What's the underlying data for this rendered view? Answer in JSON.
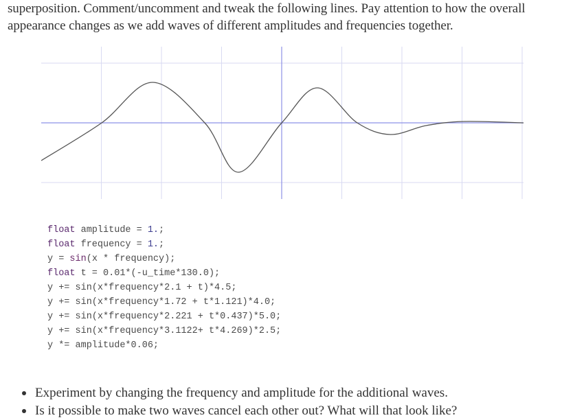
{
  "intro": {
    "text": "superposition. Comment/uncomment and tweak the following lines. Pay attention to how the overall appearance changes as we add waves of different amplitudes and frequencies together."
  },
  "colors": {
    "grid": "#d8daf2",
    "axis": "#8c90e6",
    "curve": "#555555",
    "keyword": "#5b2a6e",
    "number": "#3d3d8f"
  },
  "plot": {
    "grid": true,
    "axis_color": "#8c90e6",
    "curve_color": "#555555"
  },
  "code": {
    "lines": [
      {
        "kw": "float ",
        "rest": "amplitude = ",
        "num": "1.",
        "tail": ";"
      },
      {
        "kw": "float ",
        "rest": "frequency = ",
        "num": "1.",
        "tail": ";"
      },
      {
        "kw": "",
        "rest": "y = ",
        "fn": "sin",
        "tail2": "(x * frequency);"
      },
      {
        "kw": "float ",
        "rest": "t = 0.01*(-u_time*130.0);"
      },
      {
        "text": "y += sin(x*frequency*2.1 + t)*4.5;"
      },
      {
        "text": "y += sin(x*frequency*1.72 + t*1.121)*4.0;"
      },
      {
        "text": "y += sin(x*frequency*2.221 + t*0.437)*5.0;"
      },
      {
        "text": "y += sin(x*frequency*3.1122+ t*4.269)*2.5;"
      },
      {
        "text": "y *= amplitude*0.06;"
      }
    ]
  },
  "bullets": [
    "Experiment by changing the frequency and amplitude for the additional waves.",
    "Is it possible to make two waves cancel each other out? What will that look like?"
  ]
}
